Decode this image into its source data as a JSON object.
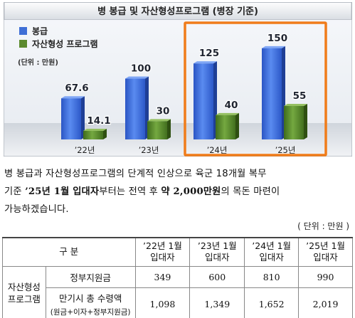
{
  "chart_data": {
    "type": "bar",
    "title": "병 봉급 및 자산형성프로그램 (병장 기준)",
    "unit": "(단위 : 만원)",
    "categories": [
      "’22년",
      "’23년",
      "’24년",
      "’25년"
    ],
    "series": [
      {
        "name": "봉급",
        "values": [
          67.6,
          100,
          125,
          150
        ],
        "labels": [
          "67.6",
          "100",
          "125",
          "150"
        ],
        "color": "#3f6fd6"
      },
      {
        "name": "자산형성 프로그램",
        "values": [
          14.1,
          30,
          40,
          55
        ],
        "labels": [
          "14.1",
          "30",
          "40",
          "55"
        ],
        "color": "#5b8a2e"
      }
    ],
    "ylim": [
      0,
      165
    ],
    "grid": false,
    "legend": "top-left",
    "highlight_categories": [
      "’24년",
      "’25년"
    ],
    "highlight_color": "#f07c1a"
  },
  "paragraph": {
    "p1": "병 봉급과 자산형성프로그램의 단계적 인상으로 육군 18개월 복무",
    "p2a": "기준 ",
    "p2b": "’25년 1월 입대자",
    "p2c": "부터는 전역 후 ",
    "p2d": "약 2,000만원",
    "p2e": "의 목돈 마련이",
    "p3": "가능하겠습니다."
  },
  "table": {
    "unit": "( 단위 : 만원 )",
    "header_label": "구    분",
    "columns": [
      {
        "year": "’22년 1월",
        "sub": "입대자"
      },
      {
        "year": "’23년 1월",
        "sub": "입대자"
      },
      {
        "year": "’24년 1월",
        "sub": "입대자"
      },
      {
        "year": "’25년 1월",
        "sub": "입대자"
      }
    ],
    "group_label_1": "자산형성",
    "group_label_2": "프로그램",
    "rows": [
      {
        "label": "정부지원금",
        "sublabel": "",
        "values": [
          "349",
          "600",
          "810",
          "990"
        ]
      },
      {
        "label": "만기시 총 수령액",
        "sublabel": "(원금+이자+정부지원금)",
        "values": [
          "1,098",
          "1,349",
          "1,652",
          "2,019"
        ]
      }
    ]
  }
}
